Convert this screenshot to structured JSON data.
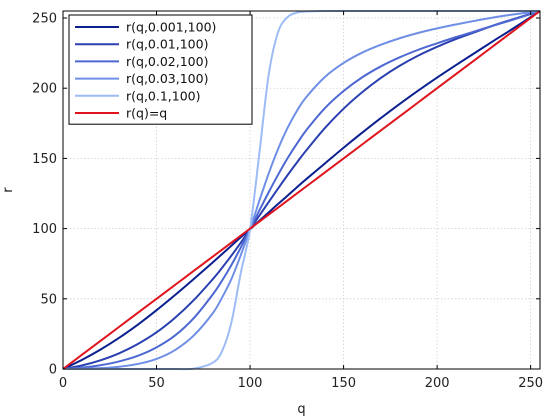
{
  "chart_data": {
    "type": "line",
    "title": "",
    "xlabel": "q",
    "ylabel": "r",
    "xlim": [
      0,
      255
    ],
    "ylim": [
      0,
      255
    ],
    "xticks": [
      0,
      50,
      100,
      150,
      200,
      250
    ],
    "yticks": [
      0,
      50,
      100,
      150,
      200,
      250
    ],
    "grid": true,
    "legend_position": "top-left",
    "x": [
      0,
      10,
      20,
      30,
      40,
      50,
      60,
      70,
      80,
      85,
      90,
      95,
      100,
      105,
      110,
      115,
      120,
      125,
      130,
      140,
      150,
      160,
      170,
      180,
      190,
      200,
      210,
      220,
      230,
      240,
      255
    ],
    "series": [
      {
        "name": "r(q,0.001,100)",
        "color": "#0b1f8f",
        "values": [
          0,
          6.4,
          13.8,
          22.2,
          31.6,
          41.9,
          52.8,
          64.2,
          75.9,
          81.8,
          87.8,
          93.8,
          99.6,
          105.6,
          111.6,
          117.6,
          123.4,
          129.4,
          135.2,
          146.4,
          157.6,
          168.4,
          178.8,
          188.8,
          198.4,
          207.6,
          216.4,
          225.0,
          233.6,
          242.0,
          255
        ]
      },
      {
        "name": "r(q,0.01,100)",
        "color": "#2a3fb0",
        "values": [
          0,
          2.5,
          6.2,
          11.2,
          17.8,
          26.1,
          36.6,
          49.2,
          63.9,
          72.0,
          80.7,
          89.9,
          99.6,
          109.3,
          119.0,
          128.6,
          138.0,
          147.0,
          155.6,
          171.6,
          185.4,
          197.2,
          207.4,
          216.0,
          223.3,
          229.5,
          235.0,
          239.8,
          244.6,
          248.9,
          255
        ]
      },
      {
        "name": "r(q,0.02,100)",
        "color": "#4d68d2",
        "values": [
          0,
          1.0,
          2.7,
          5.4,
          9.4,
          15.4,
          24.0,
          36.4,
          53.0,
          62.9,
          74.0,
          86.4,
          99.6,
          113.0,
          126.0,
          138.4,
          150.0,
          160.4,
          170.0,
          185.8,
          198.0,
          207.8,
          215.6,
          222.0,
          227.4,
          232.0,
          236.4,
          240.4,
          244.6,
          248.6,
          255
        ]
      },
      {
        "name": "r(q,0.03,100)",
        "color": "#6f8fe6",
        "values": [
          0,
          0.2,
          0.6,
          1.6,
          3.6,
          7.2,
          13.6,
          24.0,
          39.6,
          50.8,
          64.0,
          81.0,
          99.6,
          120.0,
          139.4,
          156.8,
          171.6,
          183.8,
          193.6,
          208.0,
          218.0,
          225.4,
          231.0,
          235.6,
          239.4,
          242.6,
          245.4,
          248.0,
          250.4,
          252.4,
          255
        ]
      },
      {
        "name": "r(q,0.1,100)",
        "color": "#9dbcf6",
        "values": [
          0,
          0,
          0,
          0,
          0,
          0,
          0,
          0.3,
          4.4,
          12.6,
          33.0,
          68.2,
          99.6,
          154.0,
          210.0,
          240.0,
          250.6,
          253.8,
          254.6,
          255,
          255,
          255,
          255,
          255,
          255,
          255,
          255,
          255,
          255,
          255,
          255
        ]
      },
      {
        "name": "r(q)=q",
        "color": "#e0141e",
        "values": [
          0,
          10,
          20,
          30,
          40,
          50,
          60,
          70,
          80,
          85,
          90,
          95,
          100,
          105,
          110,
          115,
          120,
          125,
          130,
          140,
          150,
          160,
          170,
          180,
          190,
          200,
          210,
          220,
          230,
          240,
          255
        ]
      }
    ]
  }
}
